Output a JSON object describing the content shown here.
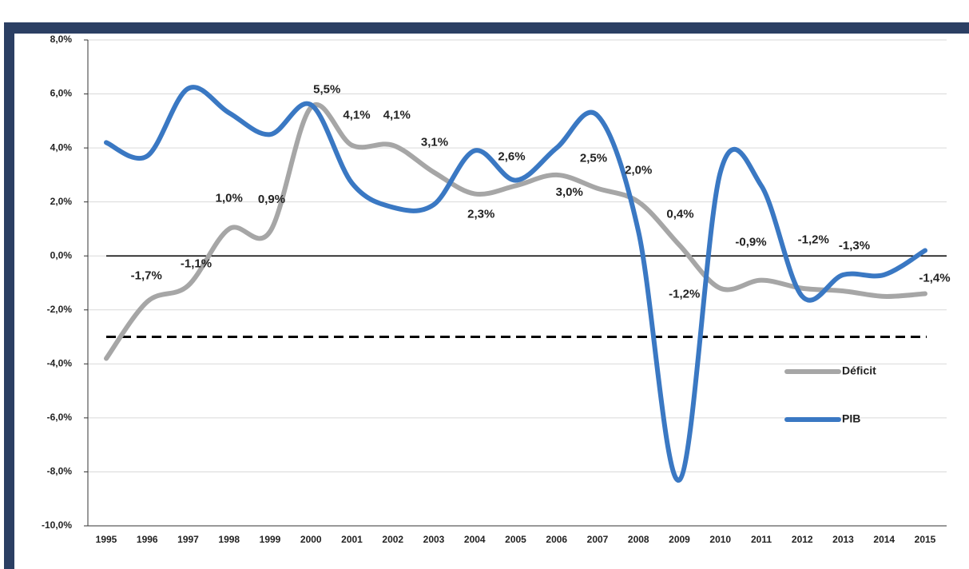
{
  "chart_data": {
    "type": "line",
    "categories": [
      "1995",
      "1996",
      "1997",
      "1998",
      "1999",
      "2000",
      "2001",
      "2002",
      "2003",
      "2004",
      "2005",
      "2006",
      "2007",
      "2008",
      "2009",
      "2010",
      "2011",
      "2012",
      "2013",
      "2014",
      "2015"
    ],
    "series": [
      {
        "name": "Déficit",
        "color": "#a6a6a6",
        "values": [
          -3.8,
          -1.7,
          -1.1,
          1.0,
          0.9,
          5.5,
          4.1,
          4.1,
          3.1,
          2.3,
          2.6,
          3.0,
          2.5,
          2.0,
          0.4,
          -1.2,
          -0.9,
          -1.2,
          -1.3,
          -1.5,
          -1.4
        ],
        "value_labels": [
          null,
          "-1,7%",
          "-1,1%",
          "1,0%",
          "0,9%",
          "5,5%",
          "4,1%",
          "4,1%",
          "3,1%",
          "2,3%",
          "2,6%",
          "3,0%",
          "2,5%",
          "2,0%",
          "0,4%",
          "-1,2%",
          "-0,9%",
          "-1,2%",
          "-1,3%",
          null,
          "-1,4%"
        ]
      },
      {
        "name": "PIB",
        "color": "#3a78c3",
        "values": [
          4.2,
          3.7,
          6.2,
          5.3,
          4.5,
          5.6,
          2.7,
          1.8,
          1.9,
          3.9,
          2.8,
          4.0,
          5.2,
          0.9,
          -8.3,
          3.1,
          2.6,
          -1.5,
          -0.7,
          -0.7,
          0.2
        ]
      }
    ],
    "reference_line": -3.0,
    "ylim": [
      -10,
      8
    ],
    "yticks": [
      {
        "value": -10,
        "label": "-10,0%"
      },
      {
        "value": -8,
        "label": "-8,0%"
      },
      {
        "value": -6,
        "label": "-6,0%"
      },
      {
        "value": -4,
        "label": "-4,0%"
      },
      {
        "value": -2,
        "label": "-2,0%"
      },
      {
        "value": 0,
        "label": "0,0%"
      },
      {
        "value": 2,
        "label": "2,0%"
      },
      {
        "value": 4,
        "label": "4,0%"
      },
      {
        "value": 6,
        "label": "6,0%"
      },
      {
        "value": 8,
        "label": "8,0%"
      }
    ],
    "grid": true
  }
}
